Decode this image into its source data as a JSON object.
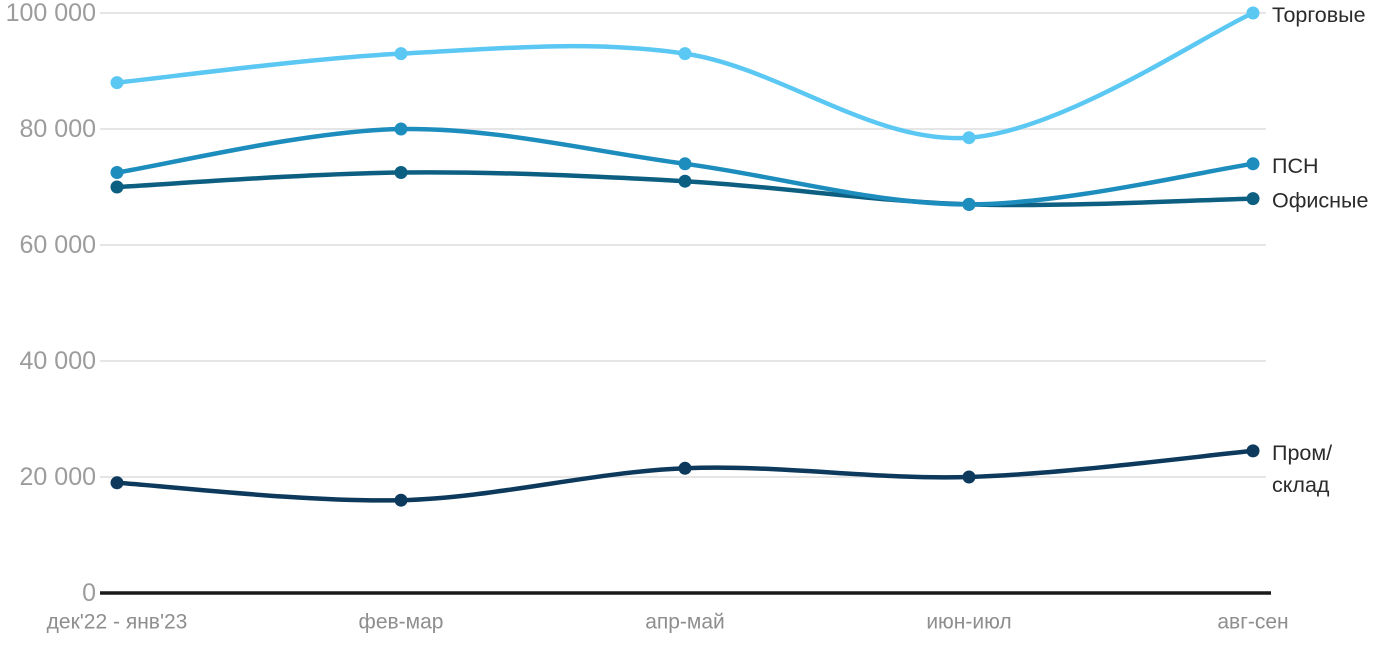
{
  "chart_data": {
    "type": "line",
    "title": "",
    "xlabel": "",
    "ylabel": "",
    "ylim": [
      0,
      100000
    ],
    "grid": true,
    "legend_position": "right-inline-labels",
    "categories": [
      "дек'22 - янв'23",
      "фев-мар",
      "апр-май",
      "июн-июл",
      "авг-сен"
    ],
    "y_ticks": [
      {
        "value": 0,
        "label": "0"
      },
      {
        "value": 20000,
        "label": "20 000"
      },
      {
        "value": 40000,
        "label": "40 000"
      },
      {
        "value": 60000,
        "label": "60 000"
      },
      {
        "value": 80000,
        "label": "80 000"
      },
      {
        "value": 100000,
        "label": "100 000"
      }
    ],
    "series": [
      {
        "name": "Торговые",
        "color": "#5BC7F3",
        "values": [
          88000,
          93000,
          93000,
          78500,
          100000
        ],
        "label_lines": [
          "Торговые"
        ]
      },
      {
        "name": "ПСН",
        "color": "#1D8DBE",
        "values": [
          72500,
          80000,
          74000,
          67000,
          74000
        ],
        "label_lines": [
          "ПСН"
        ]
      },
      {
        "name": "Офисные",
        "color": "#0D5F82",
        "values": [
          70000,
          72500,
          71000,
          67000,
          68000
        ],
        "label_lines": [
          "Офисные"
        ]
      },
      {
        "name": "Пром/склад",
        "color": "#0D3A5C",
        "values": [
          19000,
          16000,
          21500,
          20000,
          24500
        ],
        "label_lines": [
          "Пром/",
          "склад"
        ]
      }
    ]
  },
  "colors": {
    "background": "#ffffff",
    "gridline": "#e6e6e6",
    "axis": "#1a1a1a",
    "y_tick_text": "#9c9c9c",
    "x_tick_text": "#8e8e8e",
    "series_label_text": "#2b2b2b"
  }
}
